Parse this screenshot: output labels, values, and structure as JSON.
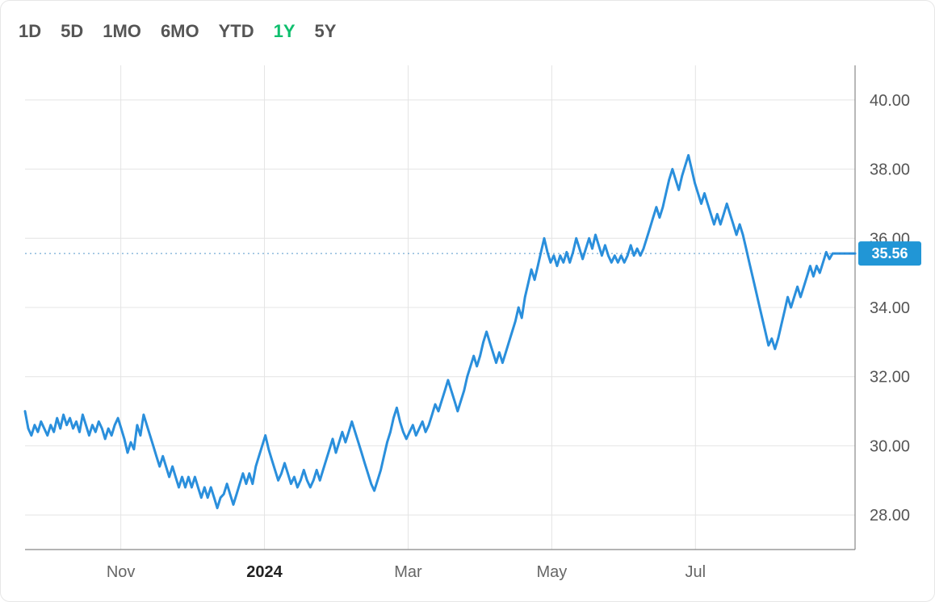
{
  "range_selector": {
    "options": [
      {
        "key": "1D",
        "label": "1D"
      },
      {
        "key": "5D",
        "label": "5D"
      },
      {
        "key": "1MO",
        "label": "1MO"
      },
      {
        "key": "6MO",
        "label": "6MO"
      },
      {
        "key": "YTD",
        "label": "YTD"
      },
      {
        "key": "1Y",
        "label": "1Y"
      },
      {
        "key": "5Y",
        "label": "5Y"
      }
    ],
    "active": "1Y",
    "fontsize": 22,
    "color_inactive": "#555555",
    "color_active": "#0fbf6e"
  },
  "chart": {
    "type": "line",
    "line_color": "#2a8fdc",
    "line_width": 3,
    "background_color": "#ffffff",
    "grid_color": "#e4e4e4",
    "axis_color": "#888888",
    "price_track_color": "#2b7ebf",
    "price_badge_bg": "#2196d6",
    "price_badge_text_color": "#ffffff",
    "current_price": 35.56,
    "y_axis": {
      "min": 27.0,
      "max": 41.0,
      "ticks": [
        28.0,
        30.0,
        32.0,
        34.0,
        36.0,
        38.0,
        40.0
      ],
      "label_fontsize": 20,
      "decimals": 2
    },
    "x_axis": {
      "min": 0,
      "max": 260,
      "ticks": [
        {
          "i": 30,
          "label": "Nov",
          "bold": false
        },
        {
          "i": 75,
          "label": "2024",
          "bold": true
        },
        {
          "i": 120,
          "label": "Mar",
          "bold": false
        },
        {
          "i": 165,
          "label": "May",
          "bold": false
        },
        {
          "i": 210,
          "label": "Jul",
          "bold": false
        }
      ],
      "label_fontsize": 20
    },
    "series": [
      31.0,
      30.5,
      30.3,
      30.6,
      30.4,
      30.7,
      30.5,
      30.3,
      30.6,
      30.4,
      30.8,
      30.5,
      30.9,
      30.6,
      30.8,
      30.5,
      30.7,
      30.4,
      30.9,
      30.6,
      30.3,
      30.6,
      30.4,
      30.7,
      30.5,
      30.2,
      30.5,
      30.3,
      30.6,
      30.8,
      30.5,
      30.2,
      29.8,
      30.1,
      29.9,
      30.6,
      30.3,
      30.9,
      30.6,
      30.3,
      30.0,
      29.7,
      29.4,
      29.7,
      29.4,
      29.1,
      29.4,
      29.1,
      28.8,
      29.1,
      28.8,
      29.1,
      28.8,
      29.1,
      28.8,
      28.5,
      28.8,
      28.5,
      28.8,
      28.5,
      28.2,
      28.5,
      28.6,
      28.9,
      28.6,
      28.3,
      28.6,
      28.9,
      29.2,
      28.9,
      29.2,
      28.9,
      29.4,
      29.7,
      30.0,
      30.3,
      29.9,
      29.6,
      29.3,
      29.0,
      29.2,
      29.5,
      29.2,
      28.9,
      29.1,
      28.8,
      29.0,
      29.3,
      29.0,
      28.8,
      29.0,
      29.3,
      29.0,
      29.3,
      29.6,
      29.9,
      30.2,
      29.8,
      30.1,
      30.4,
      30.1,
      30.4,
      30.7,
      30.4,
      30.1,
      29.8,
      29.5,
      29.2,
      28.9,
      28.7,
      29.0,
      29.3,
      29.7,
      30.1,
      30.4,
      30.8,
      31.1,
      30.7,
      30.4,
      30.2,
      30.4,
      30.6,
      30.3,
      30.5,
      30.7,
      30.4,
      30.6,
      30.9,
      31.2,
      31.0,
      31.3,
      31.6,
      31.9,
      31.6,
      31.3,
      31.0,
      31.3,
      31.6,
      32.0,
      32.3,
      32.6,
      32.3,
      32.6,
      33.0,
      33.3,
      33.0,
      32.7,
      32.4,
      32.7,
      32.4,
      32.7,
      33.0,
      33.3,
      33.6,
      34.0,
      33.7,
      34.3,
      34.7,
      35.1,
      34.8,
      35.2,
      35.6,
      36.0,
      35.6,
      35.3,
      35.5,
      35.2,
      35.5,
      35.3,
      35.6,
      35.3,
      35.6,
      36.0,
      35.7,
      35.4,
      35.7,
      36.0,
      35.7,
      36.1,
      35.8,
      35.5,
      35.8,
      35.5,
      35.3,
      35.5,
      35.3,
      35.5,
      35.3,
      35.5,
      35.8,
      35.5,
      35.7,
      35.5,
      35.7,
      36.0,
      36.3,
      36.6,
      36.9,
      36.6,
      36.9,
      37.3,
      37.7,
      38.0,
      37.7,
      37.4,
      37.8,
      38.1,
      38.4,
      38.0,
      37.6,
      37.3,
      37.0,
      37.3,
      37.0,
      36.7,
      36.4,
      36.7,
      36.4,
      36.7,
      37.0,
      36.7,
      36.4,
      36.1,
      36.4,
      36.1,
      35.7,
      35.3,
      34.9,
      34.5,
      34.1,
      33.7,
      33.3,
      32.9,
      33.1,
      32.8,
      33.1,
      33.5,
      33.9,
      34.3,
      34.0,
      34.3,
      34.6,
      34.3,
      34.6,
      34.9,
      35.2,
      34.9,
      35.2,
      35.0,
      35.3,
      35.6,
      35.4,
      35.56,
      35.56,
      35.56,
      35.56,
      35.56,
      35.56,
      35.56,
      35.56
    ]
  }
}
